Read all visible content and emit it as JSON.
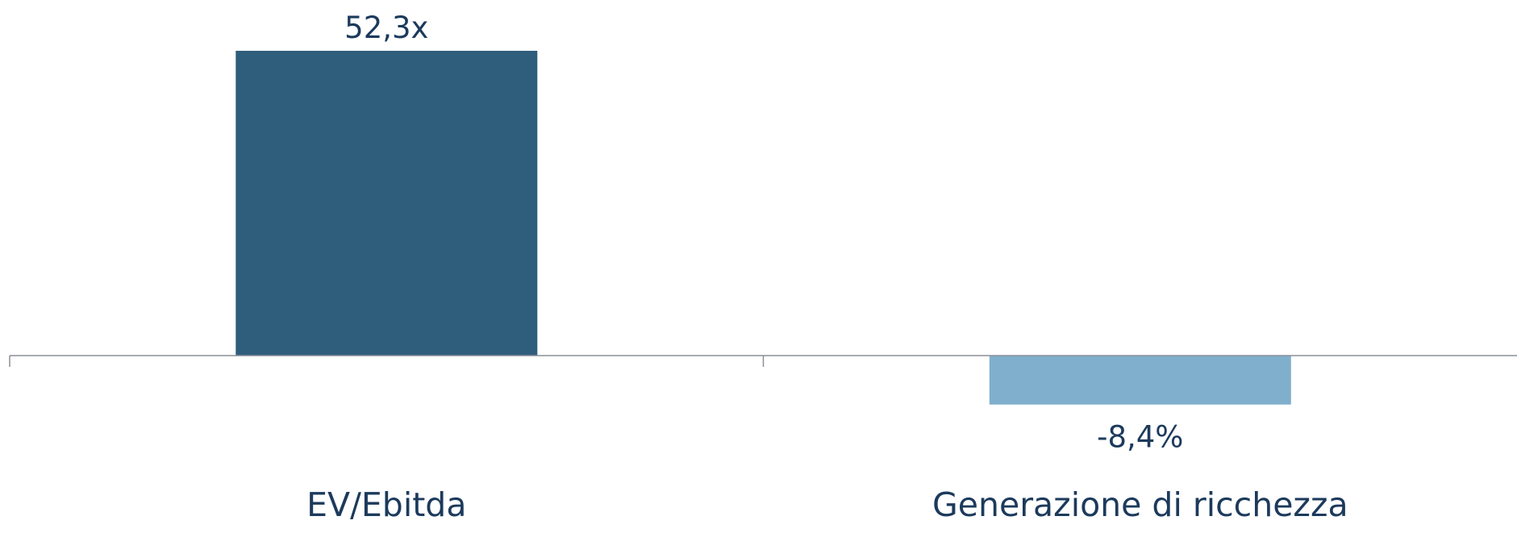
{
  "chart_data": {
    "type": "bar",
    "categories": [
      "EV/Ebitda",
      "Generazione di ricchezza"
    ],
    "values": [
      52.3,
      -8.4
    ],
    "data_labels": [
      "52,3x",
      "-8,4%"
    ],
    "title": "",
    "xlabel": "",
    "ylabel": "",
    "grid": false,
    "legend": "none",
    "colors": [
      "#2f5d7c",
      "#7fafcc"
    ],
    "axis_color": "#8a8f98",
    "text_color": "#1c3a5c"
  }
}
